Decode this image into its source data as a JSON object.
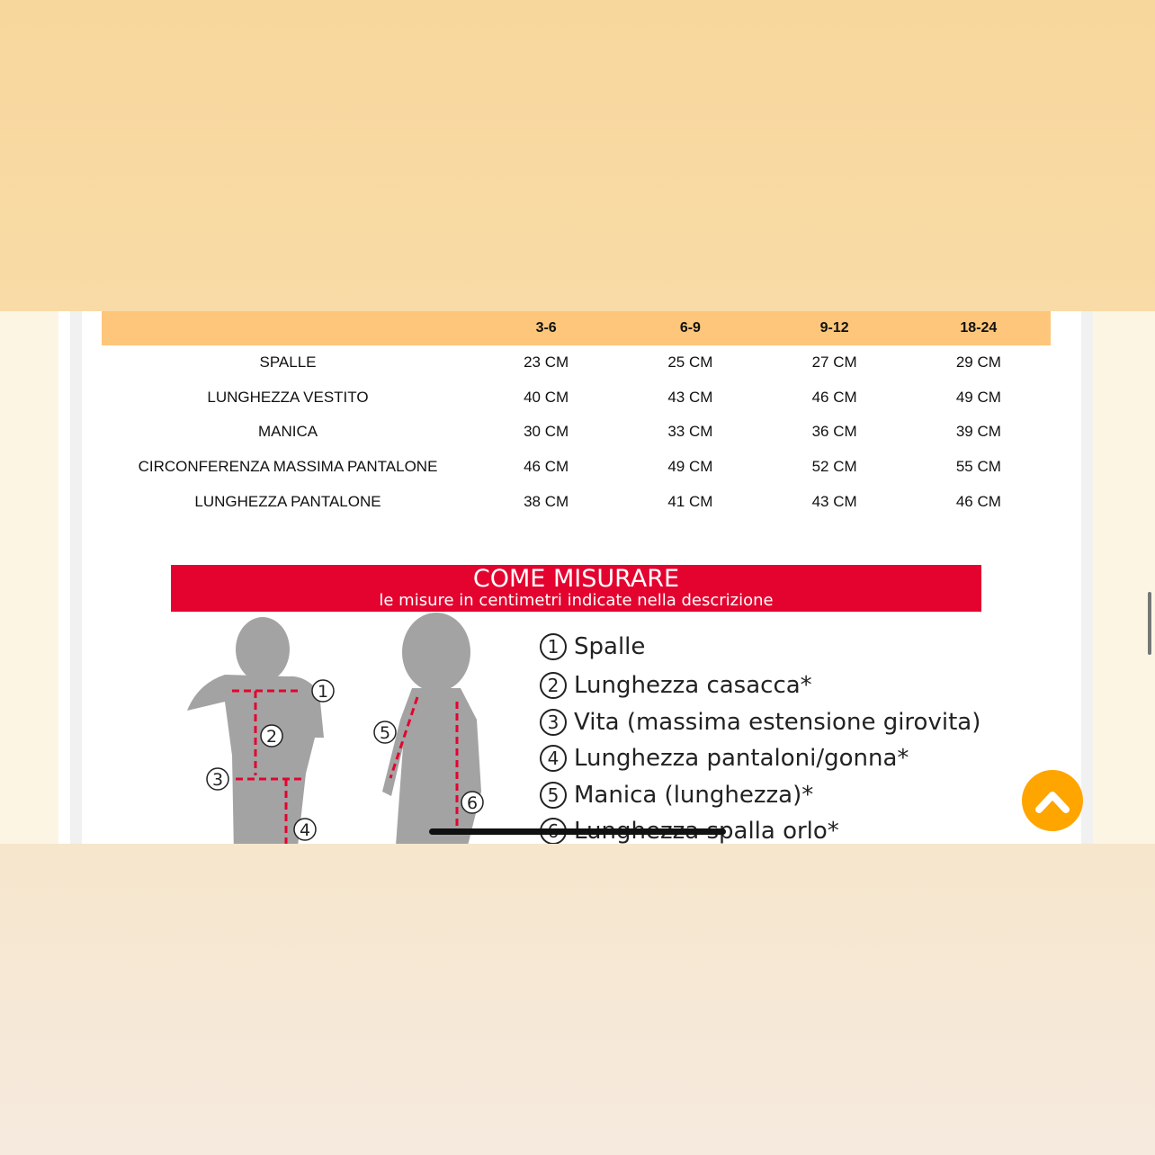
{
  "size_table": {
    "headers": [
      "",
      "3-6",
      "6-9",
      "9-12",
      "18-24"
    ],
    "rows": [
      [
        "SPALLE",
        "23 CM",
        "25 CM",
        "27 CM",
        "29 CM"
      ],
      [
        "LUNGHEZZA VESTITO",
        "40 CM",
        "43 CM",
        "46 CM",
        "49 CM"
      ],
      [
        "MANICA",
        "30 CM",
        "33 CM",
        "36 CM",
        "39 CM"
      ],
      [
        "CIRCONFERENZA MASSIMA PANTALONE",
        "46 CM",
        "49 CM",
        "52 CM",
        "55 CM"
      ],
      [
        "LUNGHEZZA PANTALONE",
        "38 CM",
        "41 CM",
        "43 CM",
        "46 CM"
      ]
    ]
  },
  "guide": {
    "title": "COME MISURARE",
    "subtitle": "le misure in centimetri indicate nella descrizione",
    "items": [
      {
        "n": "1",
        "label": "Spalle"
      },
      {
        "n": "2",
        "label": "Lunghezza casacca*"
      },
      {
        "n": "3",
        "label": "Vita (massima estensione girovita)"
      },
      {
        "n": "4",
        "label": "Lunghezza pantaloni/gonna*"
      },
      {
        "n": "5",
        "label": "Manica (lunghezza)*"
      },
      {
        "n": "6",
        "label": "Lunghezza spalla orlo*"
      }
    ],
    "figure_markers": [
      "1",
      "2",
      "3",
      "4",
      "5",
      "6"
    ]
  },
  "colors": {
    "header": "#fec67a",
    "banner": "#e4032f",
    "scroll_top": "#fea500"
  },
  "scroll_top_icon": "chevron-up-icon"
}
